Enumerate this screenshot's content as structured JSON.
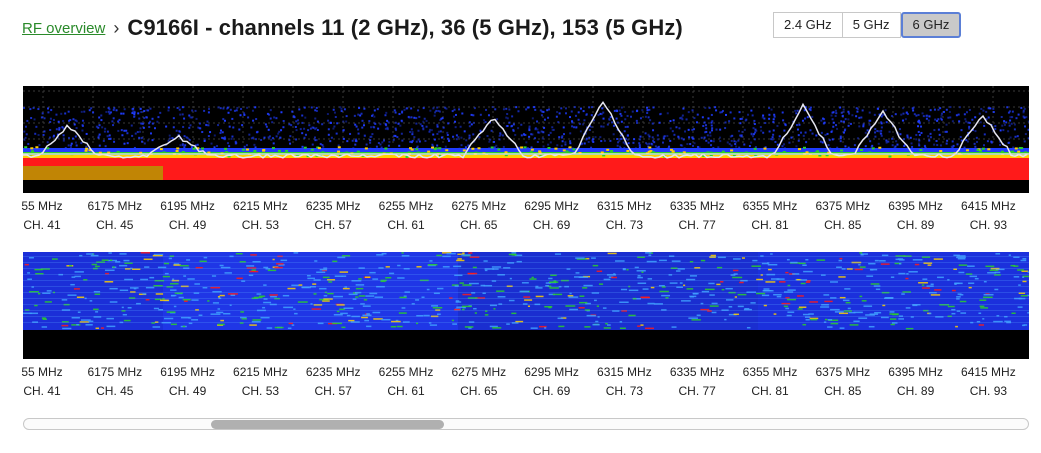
{
  "header": {
    "breadcrumb_link": "RF overview",
    "separator": "›",
    "title": "C9166I - channels 11 (2 GHz), 36 (5 GHz), 153 (5 GHz)"
  },
  "band_selector": {
    "options": [
      "2.4 GHz",
      "5 GHz",
      "6 GHz"
    ],
    "selected": "6 GHz"
  },
  "axis": {
    "ticks": [
      {
        "freq": "55 MHz",
        "ch": "CH. 41"
      },
      {
        "freq": "6175 MHz",
        "ch": "CH. 45"
      },
      {
        "freq": "6195 MHz",
        "ch": "CH. 49"
      },
      {
        "freq": "6215 MHz",
        "ch": "CH. 53"
      },
      {
        "freq": "6235 MHz",
        "ch": "CH. 57"
      },
      {
        "freq": "6255 MHz",
        "ch": "CH. 61"
      },
      {
        "freq": "6275 MHz",
        "ch": "CH. 65"
      },
      {
        "freq": "6295 MHz",
        "ch": "CH. 69"
      },
      {
        "freq": "6315 MHz",
        "ch": "CH. 73"
      },
      {
        "freq": "6335 MHz",
        "ch": "CH. 77"
      },
      {
        "freq": "6355 MHz",
        "ch": "CH. 81"
      },
      {
        "freq": "6375 MHz",
        "ch": "CH. 85"
      },
      {
        "freq": "6395 MHz",
        "ch": "CH. 89"
      },
      {
        "freq": "6415 MHz",
        "ch": "CH. 93"
      }
    ]
  },
  "colors": {
    "background": "#000000",
    "grid": "#3a3a3a",
    "heat_low": "#1f3cff",
    "heat_mid": "#2ad02a",
    "heat_high": "#ffd000",
    "heat_max": "#ff1a1a",
    "trace": "#e6e6f0",
    "link": "#2a8a2a",
    "active_border": "#5b7fd6"
  }
}
